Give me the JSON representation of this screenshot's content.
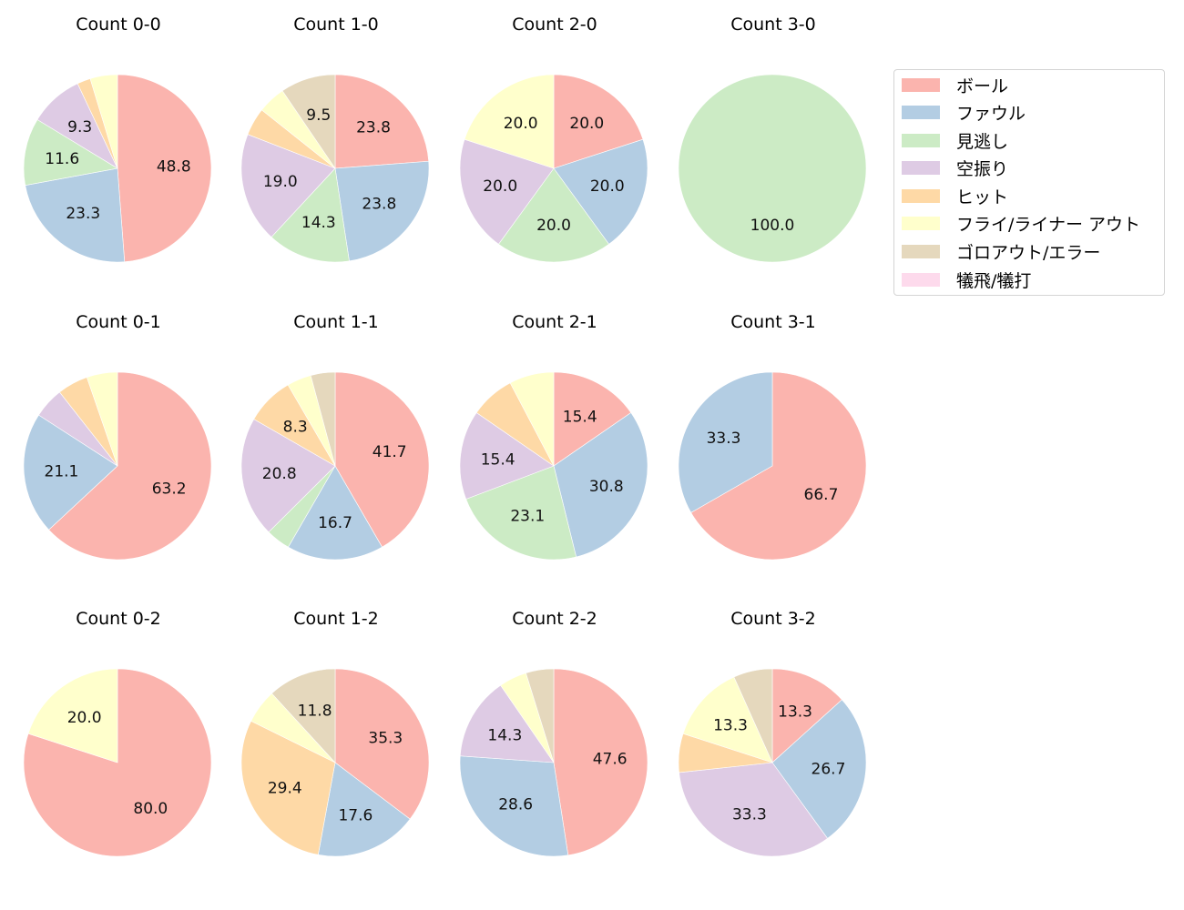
{
  "chart_data": {
    "type": "pie",
    "title": "",
    "categories": [
      "ボール",
      "ファウル",
      "見逃し",
      "空振り",
      "ヒット",
      "フライ/ライナー アウト",
      "ゴロアウト/エラー",
      "犠飛/犠打"
    ],
    "colors": [
      "#fbb4ae",
      "#b3cde3",
      "#ccebc5",
      "#decbe4",
      "#fed9a6",
      "#ffffcc",
      "#e5d8bd",
      "#fddaec"
    ],
    "legend_position": "upper right",
    "start_angle": 90,
    "direction": "clockwise",
    "label_format": "%.1f",
    "label_threshold": 8,
    "panels": [
      {
        "title": "Count 0-0",
        "values": [
          48.8,
          23.3,
          11.6,
          9.3,
          2.3,
          4.7,
          0,
          0
        ]
      },
      {
        "title": "Count 1-0",
        "values": [
          23.8,
          23.8,
          14.3,
          19.0,
          4.8,
          4.8,
          9.5,
          0
        ]
      },
      {
        "title": "Count 2-0",
        "values": [
          20.0,
          20.0,
          20.0,
          20.0,
          0,
          20.0,
          0,
          0
        ]
      },
      {
        "title": "Count 3-0",
        "values": [
          0,
          0,
          100.0,
          0,
          0,
          0,
          0,
          0
        ]
      },
      {
        "title": "Count 0-1",
        "values": [
          63.2,
          21.1,
          0,
          5.3,
          5.3,
          5.3,
          0,
          0
        ]
      },
      {
        "title": "Count 1-1",
        "values": [
          41.7,
          16.7,
          4.2,
          20.8,
          8.3,
          4.2,
          4.2,
          0
        ]
      },
      {
        "title": "Count 2-1",
        "values": [
          15.4,
          30.8,
          23.1,
          15.4,
          7.7,
          7.7,
          0,
          0
        ]
      },
      {
        "title": "Count 3-1",
        "values": [
          66.7,
          33.3,
          0,
          0,
          0,
          0,
          0,
          0
        ]
      },
      {
        "title": "Count 0-2",
        "values": [
          80.0,
          0,
          0,
          0,
          0,
          20.0,
          0,
          0
        ]
      },
      {
        "title": "Count 1-2",
        "values": [
          35.3,
          17.6,
          0,
          0,
          29.4,
          5.9,
          11.8,
          0
        ]
      },
      {
        "title": "Count 2-2",
        "values": [
          47.6,
          28.6,
          0,
          14.3,
          0,
          4.8,
          4.8,
          0
        ]
      },
      {
        "title": "Count 3-2",
        "values": [
          13.3,
          26.7,
          0,
          33.3,
          6.7,
          13.3,
          6.7,
          0
        ]
      }
    ]
  },
  "legend": {
    "items": [
      {
        "label": "ボール",
        "color": "#fbb4ae"
      },
      {
        "label": "ファウル",
        "color": "#b3cde3"
      },
      {
        "label": "見逃し",
        "color": "#ccebc5"
      },
      {
        "label": "空振り",
        "color": "#decbe4"
      },
      {
        "label": "ヒット",
        "color": "#fed9a6"
      },
      {
        "label": "フライ/ライナー アウト",
        "color": "#ffffcc"
      },
      {
        "label": "ゴロアウト/エラー",
        "color": "#e5d8bd"
      },
      {
        "label": "犠飛/犠打",
        "color": "#fddaec"
      }
    ]
  }
}
